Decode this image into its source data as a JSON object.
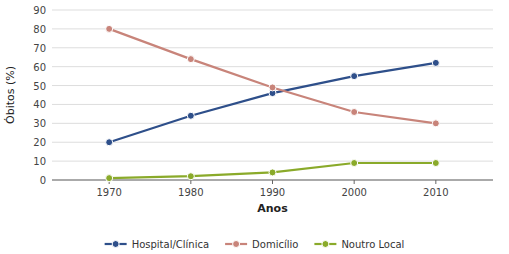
{
  "chart_data": {
    "type": "line",
    "x": [
      1970,
      1980,
      1990,
      2000,
      2010
    ],
    "xlim": [
      1963,
      2017
    ],
    "xticks": [
      1970,
      1980,
      1990,
      2000,
      2010
    ],
    "ylim": [
      0,
      90
    ],
    "yticks": [
      0,
      10,
      20,
      30,
      40,
      50,
      60,
      70,
      80,
      90
    ],
    "xlabel": "Anos",
    "ylabel": "Óbitos (%)",
    "grid": true,
    "legend": "bottom",
    "marker": "circle",
    "series": [
      {
        "name": "Hospital/Clínica",
        "color": "#2e4f8a",
        "values": [
          20,
          34,
          46,
          55,
          62
        ]
      },
      {
        "name": "Domicílio",
        "color": "#c8847a",
        "values": [
          80,
          64,
          49,
          36,
          30
        ]
      },
      {
        "name": "Noutro Local",
        "color": "#8aaa2a",
        "values": [
          1,
          2,
          4,
          9,
          9
        ]
      }
    ]
  }
}
